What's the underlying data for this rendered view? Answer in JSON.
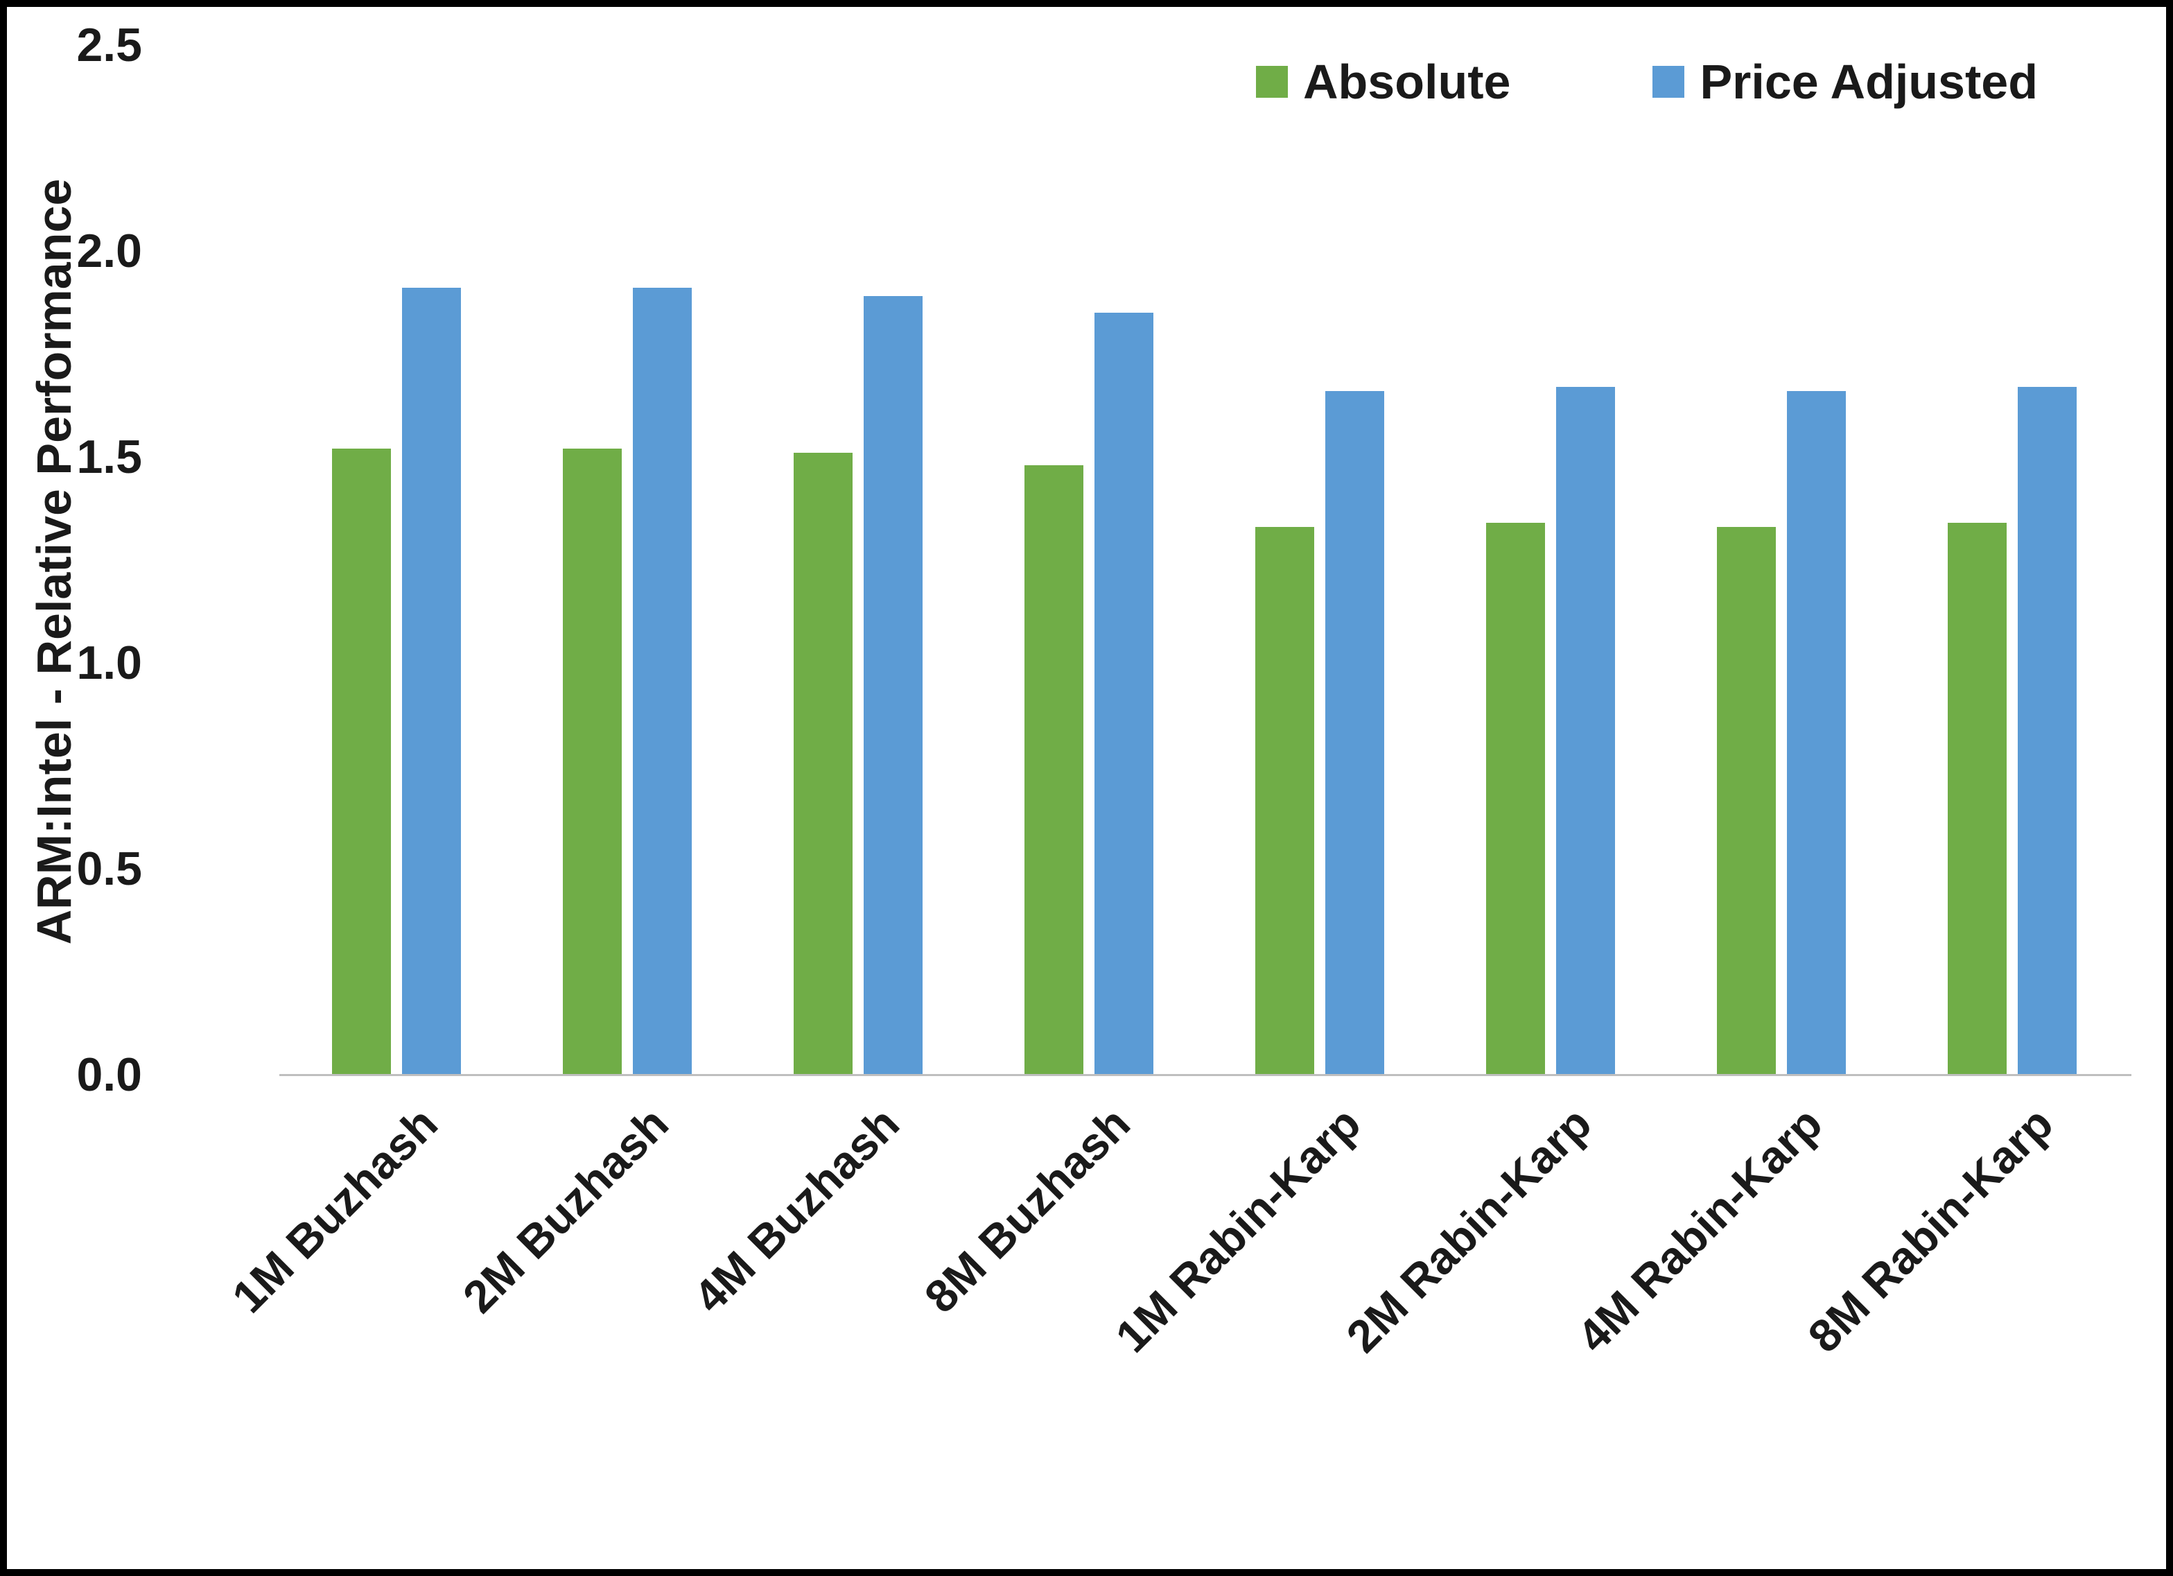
{
  "chart_data": {
    "type": "bar",
    "title": "",
    "xlabel": "",
    "ylabel": "ARM:Intel - Relative Performance",
    "ylim": [
      0,
      2.5
    ],
    "ytick_labels": [
      "0.0",
      "0.5",
      "1.0",
      "1.5",
      "2.0",
      "2.5"
    ],
    "grid": false,
    "legend_position": "top-right",
    "categories": [
      "1M Buzhash",
      "2M Buzhash",
      "4M Buzhash",
      "8M Buzhash",
      "1M Rabin-Karp",
      "2M Rabin-Karp",
      "4M Rabin-Karp",
      "8M Rabin-Karp"
    ],
    "series": [
      {
        "name": "Absolute",
        "color": "#70AD47",
        "values": [
          1.52,
          1.52,
          1.51,
          1.48,
          1.33,
          1.34,
          1.33,
          1.34
        ]
      },
      {
        "name": "Price Adjusted",
        "color": "#5B9BD5",
        "values": [
          1.91,
          1.91,
          1.89,
          1.85,
          1.66,
          1.67,
          1.66,
          1.67
        ]
      }
    ]
  }
}
